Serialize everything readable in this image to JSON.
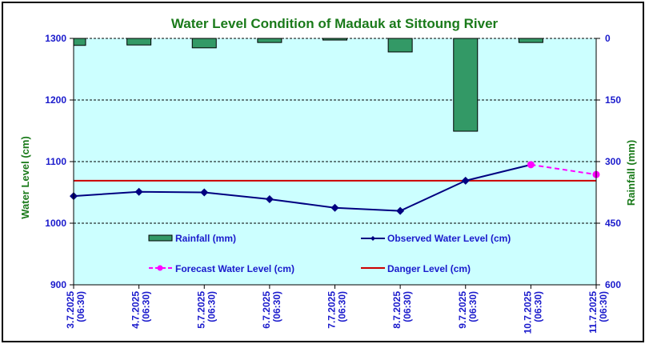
{
  "chart_data": {
    "type": "bar+line",
    "title": "Water Level Condition of Madauk at Sittoung River",
    "ylabel": "Water Level (cm)",
    "y2label": "Rainfall (mm)",
    "ylim": [
      900,
      1300
    ],
    "y_ticks": [
      900,
      1000,
      1100,
      1200,
      1300
    ],
    "y2lim": [
      0,
      600
    ],
    "y2_inverted": true,
    "y2_ticks": [
      0,
      150,
      300,
      450,
      600
    ],
    "grid": true,
    "categories": [
      [
        "3.7.2025",
        "(06:30)"
      ],
      [
        "4.7.2025",
        "(06:30)"
      ],
      [
        "5.7.2025",
        "(06:30)"
      ],
      [
        "6.7.2025",
        "(06:30)"
      ],
      [
        "7.7.2025",
        "(06:30)"
      ],
      [
        "8.7.2025",
        "(06:30)"
      ],
      [
        "9.7.2025",
        "(06:30)"
      ],
      [
        "10.7.2025",
        "(06:30)"
      ],
      [
        "11.7.2025",
        "(06:30)"
      ]
    ],
    "series": [
      {
        "name": "Rainfall (mm)",
        "type": "bar",
        "axis": "y2",
        "color": "#339966",
        "values": [
          17,
          16,
          23,
          10,
          4,
          33,
          226,
          10,
          null
        ]
      },
      {
        "name": "Observed Water Level (cm)",
        "type": "line",
        "axis": "y",
        "color": "#000080",
        "marker": "diamond",
        "values": [
          1044,
          1051,
          1050,
          1039,
          1025,
          1020,
          1069,
          null,
          null
        ]
      },
      {
        "name": "Forecast Water Level (cm)",
        "type": "line",
        "axis": "y",
        "color": "#ff00ff",
        "dashed": true,
        "marker": "circle",
        "values": [
          null,
          null,
          null,
          null,
          null,
          null,
          null,
          1095,
          1079
        ]
      },
      {
        "name": "Danger Level (cm)",
        "type": "line",
        "axis": "y",
        "color": "#cc0000",
        "constant": 1069
      }
    ],
    "observed_to_forecast_connector": true,
    "legend_position": "inside-bottom"
  },
  "colors": {
    "plot_bg": "#ccffff",
    "title": "#1a7a1a",
    "ticks": "#1a1acc"
  }
}
